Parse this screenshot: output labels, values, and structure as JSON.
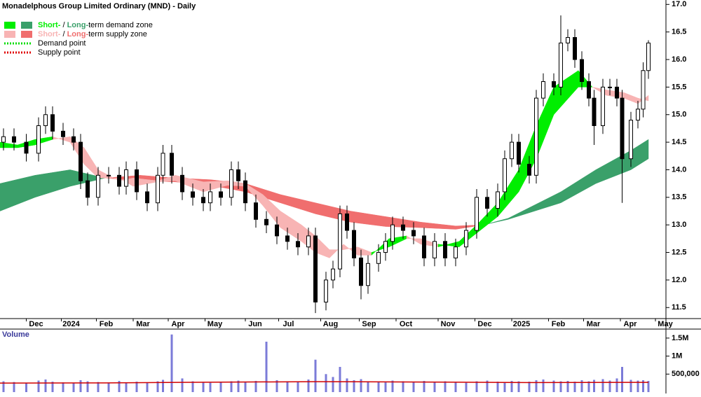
{
  "chart_data": {
    "type": "candlestick",
    "title": "Monadelphous Group Limited Ordinary (MND) - Daily",
    "legend": [
      {
        "short": "Short-",
        "sep": " / ",
        "long": "Long-",
        "rest": "term demand zone",
        "short_color": "#00ee00",
        "long_color": "#3aa06a"
      },
      {
        "short": "Short-",
        "sep": " / ",
        "long": "Long-",
        "rest": "term supply zone",
        "short_color": "#f8b4b4",
        "long_color": "#f06e6e"
      },
      {
        "text": "Demand point",
        "color": "#00dd00"
      },
      {
        "text": "Supply point",
        "color": "#e00000"
      }
    ],
    "xlim": [
      0,
      380
    ],
    "xticks": [
      {
        "value": 15,
        "label": "Dec"
      },
      {
        "value": 35,
        "label": "2024"
      },
      {
        "value": 55,
        "label": "Feb"
      },
      {
        "value": 76,
        "label": "Mar"
      },
      {
        "value": 96,
        "label": "Apr"
      },
      {
        "value": 117,
        "label": "May"
      },
      {
        "value": 140,
        "label": "Jun"
      },
      {
        "value": 159,
        "label": "Jul"
      },
      {
        "value": 183,
        "label": "Aug"
      },
      {
        "value": 205,
        "label": "Sep"
      },
      {
        "value": 226,
        "label": "Oct"
      },
      {
        "value": 250,
        "label": "Nov"
      },
      {
        "value": 271,
        "label": "Dec"
      },
      {
        "value": 292,
        "label": "2025"
      },
      {
        "value": 313,
        "label": "Feb"
      },
      {
        "value": 333,
        "label": "Mar"
      },
      {
        "value": 354,
        "label": "Apr"
      },
      {
        "value": 374,
        "label": "May"
      }
    ],
    "ylim": [
      11.3,
      17.08
    ],
    "yticks": [
      {
        "value": 11.5,
        "label": "11.5"
      },
      {
        "value": 12,
        "label": "12.0"
      },
      {
        "value": 12.5,
        "label": "12.5"
      },
      {
        "value": 13,
        "label": "13.0"
      },
      {
        "value": 13.5,
        "label": "13.5"
      },
      {
        "value": 14,
        "label": "14.0"
      },
      {
        "value": 14.5,
        "label": "14.5"
      },
      {
        "value": 15,
        "label": "15.0"
      },
      {
        "value": 15.5,
        "label": "15.5"
      },
      {
        "value": 16,
        "label": "16.0"
      },
      {
        "value": 16.5,
        "label": "16.5"
      },
      {
        "value": 17,
        "label": "17.0"
      }
    ],
    "x": [
      2,
      8,
      15,
      22,
      26,
      30,
      36,
      42,
      46,
      50,
      56,
      62,
      68,
      72,
      78,
      84,
      90,
      93,
      98,
      104,
      110,
      116,
      120,
      126,
      132,
      136,
      140,
      146,
      152,
      158,
      164,
      170,
      176,
      180,
      186,
      190,
      194,
      198,
      202,
      206,
      210,
      216,
      220,
      224,
      230,
      236,
      242,
      248,
      254,
      260,
      266,
      272,
      278,
      284,
      288,
      292,
      296,
      302,
      306,
      310,
      316,
      320,
      324,
      328,
      332,
      336,
      339,
      344,
      348,
      352,
      355,
      360,
      364,
      367,
      370
    ],
    "open": [
      14.5,
      14.6,
      14.5,
      14.3,
      14.8,
      15.0,
      14.7,
      14.6,
      14.5,
      13.8,
      13.5,
      13.9,
      13.9,
      13.7,
      14.0,
      13.6,
      13.4,
      13.9,
      14.3,
      13.9,
      13.6,
      13.5,
      13.4,
      13.6,
      13.5,
      14.0,
      13.8,
      13.4,
      13.1,
      13.0,
      12.8,
      12.7,
      12.6,
      12.8,
      11.6,
      12.0,
      12.2,
      13.2,
      12.9,
      12.4,
      11.9,
      12.3,
      12.5,
      12.7,
      13.0,
      12.9,
      12.8,
      12.4,
      12.7,
      12.4,
      12.6,
      12.9,
      13.5,
      13.3,
      13.6,
      14.2,
      14.5,
      14.1,
      13.9,
      15.3,
      15.6,
      15.5,
      16.3,
      16.4,
      16.0,
      15.6,
      15.3,
      14.8,
      15.5,
      15.5,
      15.3,
      14.2,
      14.9,
      15.1,
      15.8
    ],
    "high": [
      14.75,
      14.75,
      14.65,
      14.95,
      15.15,
      15.15,
      14.85,
      14.75,
      14.65,
      13.95,
      14.05,
      14.05,
      14.05,
      14.15,
      14.15,
      13.75,
      14.05,
      14.45,
      14.45,
      14.05,
      13.75,
      13.65,
      13.75,
      13.75,
      14.15,
      14.15,
      13.95,
      13.55,
      13.25,
      13.15,
      12.95,
      12.85,
      12.95,
      12.95,
      12.15,
      12.35,
      13.35,
      13.35,
      13.05,
      12.55,
      12.45,
      12.65,
      12.85,
      13.15,
      13.15,
      13.05,
      12.95,
      12.85,
      12.85,
      12.75,
      13.05,
      13.65,
      13.65,
      13.75,
      14.35,
      14.65,
      14.65,
      14.25,
      15.45,
      15.75,
      15.75,
      16.8,
      16.55,
      16.55,
      16.15,
      15.75,
      15.45,
      15.65,
      15.65,
      15.65,
      15.45,
      15.05,
      15.25,
      15.95,
      16.35
    ],
    "low": [
      14.35,
      14.35,
      14.15,
      14.15,
      14.65,
      14.55,
      14.45,
      14.35,
      13.65,
      13.35,
      13.35,
      13.75,
      13.55,
      13.55,
      13.45,
      13.25,
      13.25,
      13.75,
      13.75,
      13.45,
      13.35,
      13.25,
      13.25,
      13.35,
      13.35,
      13.65,
      13.25,
      12.95,
      12.85,
      12.65,
      12.55,
      12.45,
      12.45,
      11.4,
      11.45,
      11.85,
      12.05,
      12.75,
      12.25,
      11.65,
      11.75,
      12.15,
      12.35,
      12.55,
      12.75,
      12.65,
      12.25,
      12.25,
      12.25,
      12.25,
      12.45,
      12.75,
      13.15,
      13.15,
      13.45,
      14.05,
      13.95,
      13.75,
      13.75,
      15.15,
      15.35,
      15.35,
      16.15,
      15.85,
      15.45,
      15.15,
      14.45,
      14.65,
      15.35,
      15.15,
      13.4,
      14.05,
      14.75,
      14.95,
      15.65
    ],
    "close": [
      14.6,
      14.5,
      14.3,
      14.8,
      15.0,
      14.7,
      14.6,
      14.5,
      13.8,
      13.5,
      13.9,
      13.9,
      13.7,
      14.0,
      13.6,
      13.4,
      13.9,
      14.3,
      13.9,
      13.6,
      13.5,
      13.4,
      13.6,
      13.5,
      14.0,
      13.8,
      13.4,
      13.1,
      13.0,
      12.8,
      12.7,
      12.6,
      12.8,
      11.6,
      12.0,
      12.2,
      13.2,
      12.9,
      12.4,
      11.9,
      12.3,
      12.5,
      12.7,
      13.0,
      12.9,
      12.8,
      12.4,
      12.7,
      12.4,
      12.6,
      12.9,
      13.5,
      13.3,
      13.6,
      14.2,
      14.5,
      14.1,
      13.9,
      15.3,
      15.6,
      15.5,
      16.3,
      16.4,
      16.0,
      15.6,
      15.3,
      14.8,
      15.5,
      15.5,
      15.3,
      14.2,
      14.9,
      15.1,
      15.8,
      16.3
    ],
    "long_zone": {
      "x": [
        0,
        20,
        40,
        60,
        80,
        100,
        120,
        140,
        160,
        180,
        200,
        220,
        240,
        260,
        276,
        290,
        300,
        320,
        340,
        360,
        370
      ],
      "fast": [
        13.75,
        13.9,
        14.0,
        13.85,
        13.8,
        13.78,
        13.72,
        13.6,
        13.4,
        13.2,
        13.05,
        12.97,
        12.95,
        12.92,
        13.0,
        13.12,
        13.28,
        13.6,
        14.0,
        14.35,
        14.55
      ],
      "slow": [
        13.25,
        13.5,
        13.7,
        13.85,
        13.9,
        13.85,
        13.82,
        13.75,
        13.55,
        13.4,
        13.25,
        13.15,
        13.05,
        12.98,
        13.0,
        13.1,
        13.2,
        13.4,
        13.75,
        14.0,
        14.2
      ]
    },
    "short_zone": {
      "x": [
        0,
        10,
        20,
        30,
        40,
        48,
        56,
        68,
        76,
        90,
        100,
        116,
        130,
        140,
        150,
        160,
        172,
        180,
        188,
        196,
        204,
        212,
        222,
        232,
        240,
        250,
        262,
        272,
        284,
        296,
        306,
        316,
        330,
        338,
        346,
        356,
        364,
        370
      ],
      "fast": [
        14.5,
        14.45,
        14.55,
        14.6,
        14.5,
        14.1,
        13.85,
        13.85,
        13.7,
        13.78,
        13.8,
        13.6,
        13.72,
        13.7,
        13.35,
        12.95,
        12.7,
        12.5,
        12.4,
        12.65,
        12.45,
        12.45,
        12.75,
        12.8,
        12.65,
        12.6,
        12.7,
        13.0,
        13.4,
        14.0,
        14.8,
        15.5,
        15.8,
        15.5,
        15.35,
        15.3,
        15.2,
        15.35
      ],
      "slow": [
        14.4,
        14.4,
        14.45,
        14.55,
        14.6,
        14.4,
        14.0,
        13.8,
        13.85,
        13.8,
        13.9,
        13.78,
        13.8,
        13.75,
        13.55,
        13.25,
        13.0,
        12.8,
        12.55,
        12.55,
        12.6,
        12.5,
        12.6,
        12.75,
        12.75,
        12.65,
        12.6,
        12.85,
        13.15,
        13.6,
        14.2,
        15.0,
        15.5,
        15.5,
        15.45,
        15.4,
        15.3,
        15.25
      ]
    },
    "volume": {
      "label": "Volume",
      "color": "#7b7bd8",
      "values": [
        300000,
        280000,
        260000,
        320000,
        350000,
        290000,
        270000,
        250000,
        330000,
        300000,
        280000,
        260000,
        310000,
        270000,
        290000,
        260000,
        300000,
        340000,
        1600000,
        380000,
        300000,
        270000,
        260000,
        280000,
        300000,
        320000,
        290000,
        310000,
        1400000,
        330000,
        300000,
        280000,
        350000,
        900000,
        500000,
        420000,
        700000,
        380000,
        330000,
        360000,
        300000,
        280000,
        270000,
        320000,
        300000,
        290000,
        310000,
        280000,
        300000,
        270000,
        260000,
        300000,
        320000,
        290000,
        280000,
        310000,
        300000,
        290000,
        330000,
        350000,
        320000,
        300000,
        310000,
        290000,
        330000,
        300000,
        340000,
        360000,
        320000,
        380000,
        700000,
        340000,
        320000,
        330000,
        310000
      ],
      "ma_x": [
        0,
        60,
        120,
        180,
        240,
        300,
        370
      ],
      "ma_values": [
        250000,
        255000,
        275000,
        290000,
        280000,
        265000,
        270000
      ],
      "ma_color": "#d00000",
      "ylim": [
        0,
        1750000
      ],
      "yticks": [
        {
          "value": 500000,
          "label": "500,000"
        },
        {
          "value": 1000000,
          "label": "1M"
        },
        {
          "value": 1500000,
          "label": "1.5M"
        }
      ]
    }
  }
}
